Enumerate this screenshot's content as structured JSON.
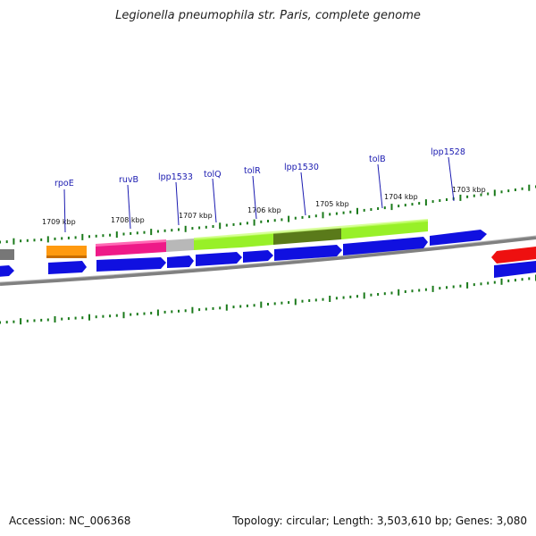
{
  "title": "Legionella pneumophila str. Paris, complete genome",
  "footer": {
    "accession": "Accession: NC_006368",
    "topology": "Topology: circular; Length: 3,503,610 bp; Genes: 3,080"
  },
  "colors": {
    "tick": "#1a7a1a",
    "gene_label": "#1a1ab0",
    "backbone": "#808080",
    "cds": "#1010e0"
  },
  "gene_labels": [
    {
      "name": "rpoE"
    },
    {
      "name": "ruvB"
    },
    {
      "name": "lpp1533"
    },
    {
      "name": "tolQ"
    },
    {
      "name": "tolR"
    },
    {
      "name": "lpp1530"
    },
    {
      "name": "tolB"
    },
    {
      "name": "lpp1528"
    }
  ],
  "kbp_labels": [
    {
      "text": "1709 kbp"
    },
    {
      "text": "1708 kbp"
    },
    {
      "text": "1707 kbp"
    },
    {
      "text": "1706 kbp"
    },
    {
      "text": "1705 kbp"
    },
    {
      "text": "1704 kbp"
    },
    {
      "text": "1703 kbp"
    }
  ]
}
